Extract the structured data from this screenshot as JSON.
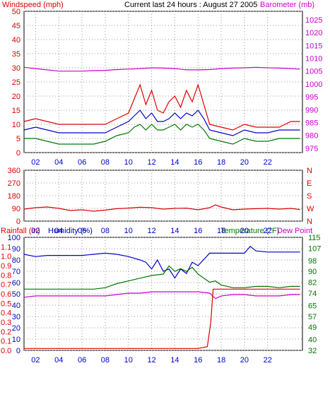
{
  "header": {
    "left_label": "Windspeed (mph)",
    "title": "Current last 24 hours : August 27 2005",
    "right_label": "Barometer (mb)"
  },
  "colors": {
    "red": "#dd0000",
    "blue": "#0000cc",
    "green": "#007700",
    "magenta": "#cc00cc",
    "frame": "#000000",
    "background": "#ffffff"
  },
  "chart_data": [
    {
      "type": "line",
      "name": "wind-barometer",
      "x_ticks": [
        "02",
        "04",
        "06",
        "08",
        "10",
        "12",
        "14",
        "16",
        "18",
        "20",
        "22"
      ],
      "y_left": {
        "label": "Windspeed (mph)",
        "ticks": [
          0,
          5,
          10,
          15,
          20,
          25,
          30,
          35,
          40,
          45,
          50
        ],
        "range": [
          0,
          50
        ]
      },
      "y_right": {
        "label": "Barometer (mb)",
        "ticks": [
          975,
          980,
          985,
          990,
          995,
          1000,
          1005,
          1010,
          1015,
          1020,
          1025
        ],
        "range": [
          973.3,
          1028.3
        ]
      },
      "x_range": [
        0,
        24
      ],
      "series": [
        {
          "color": "#dd0000",
          "x": [
            0,
            1,
            2,
            3,
            4,
            5,
            6,
            7,
            8,
            9,
            9.5,
            10,
            10.5,
            11,
            11.5,
            12,
            12.5,
            13,
            13.5,
            14,
            14.5,
            15,
            15.5,
            16,
            17,
            18,
            19,
            20,
            21,
            22,
            23,
            23.8
          ],
          "y": [
            11,
            12,
            11,
            10,
            10,
            10,
            10,
            10,
            12,
            14,
            19,
            24,
            17,
            22,
            15,
            14,
            18,
            20,
            16,
            22,
            18,
            24,
            17,
            10,
            9,
            8,
            10,
            9,
            9,
            9,
            11,
            11
          ]
        },
        {
          "color": "#0000cc",
          "x": [
            0,
            1,
            2,
            3,
            4,
            5,
            6,
            7,
            8,
            9,
            9.5,
            10,
            10.5,
            11,
            11.5,
            12,
            12.5,
            13,
            13.5,
            14,
            14.5,
            15,
            15.5,
            16,
            17,
            18,
            19,
            20,
            21,
            22,
            23,
            23.8
          ],
          "y": [
            8,
            9,
            8,
            7,
            7,
            7,
            7,
            7,
            9,
            11,
            13,
            15,
            12,
            14,
            11,
            11,
            12,
            14,
            12,
            14,
            13,
            15,
            12,
            8,
            7,
            6,
            8,
            7,
            7,
            8,
            8,
            8
          ]
        },
        {
          "color": "#007700",
          "x": [
            0,
            1,
            2,
            3,
            4,
            5,
            6,
            7,
            8,
            9,
            9.5,
            10,
            10.5,
            11,
            11.5,
            12,
            12.5,
            13,
            13.5,
            14,
            14.5,
            15,
            15.5,
            16,
            17,
            18,
            19,
            20,
            21,
            22,
            23,
            23.8
          ],
          "y": [
            5,
            5,
            4,
            3,
            3,
            3,
            3,
            4,
            6,
            7,
            9,
            10,
            8,
            10,
            8,
            8,
            9,
            10,
            8,
            10,
            9,
            10,
            8,
            5,
            4,
            3,
            5,
            4,
            4,
            5,
            5,
            5
          ]
        },
        {
          "color": "#cc00cc",
          "axis": "right",
          "x": [
            0,
            1,
            2,
            3,
            4,
            5,
            6,
            7,
            8,
            9,
            10,
            11,
            12,
            13,
            14,
            15,
            16,
            17,
            18,
            19,
            20,
            21,
            22,
            23,
            23.8
          ],
          "y": [
            1006.5,
            1006,
            1005.5,
            1005,
            1005,
            1005,
            1005.2,
            1005.3,
            1005.6,
            1005.8,
            1006,
            1006.3,
            1006.2,
            1006,
            1005.5,
            1005.5,
            1005.6,
            1006,
            1006.2,
            1006.3,
            1006.5,
            1006.3,
            1006.2,
            1006,
            1005.8
          ]
        }
      ]
    },
    {
      "type": "line",
      "name": "wind-direction",
      "x_ticks": [
        "02",
        "04",
        "06",
        "08",
        "10",
        "12",
        "14",
        "16",
        "18",
        "20",
        "22"
      ],
      "y_left": {
        "ticks": [
          0,
          90,
          180,
          270,
          360
        ],
        "range": [
          0,
          360
        ]
      },
      "y_right": {
        "ticks": [
          "N",
          "W",
          "S",
          "E",
          "N"
        ]
      },
      "x_range": [
        0,
        24
      ],
      "series": [
        {
          "color": "#dd0000",
          "x": [
            0,
            1,
            2,
            3,
            4,
            5,
            6,
            7,
            8,
            9,
            10,
            11,
            12,
            13,
            14,
            15,
            16,
            16.5,
            17,
            18,
            19,
            20,
            21,
            22,
            23,
            23.8
          ],
          "y": [
            85,
            95,
            100,
            90,
            75,
            80,
            70,
            78,
            88,
            92,
            98,
            95,
            85,
            90,
            92,
            80,
            95,
            115,
            100,
            80,
            85,
            88,
            90,
            85,
            90,
            82
          ]
        }
      ]
    },
    {
      "type": "line",
      "name": "rain-humidity-temperature",
      "labels": {
        "rainfall": "Rainfall (in)",
        "humidity": "Humidity (%)",
        "temperature": "Temperature (°F)",
        "dewpoint": "Dew Point"
      },
      "x_ticks": [
        "02",
        "04",
        "06",
        "08",
        "10",
        "12",
        "14",
        "16",
        "18",
        "20",
        "22"
      ],
      "y_humidity": {
        "ticks": [
          0,
          10,
          20,
          30,
          40,
          50,
          60,
          70,
          80,
          90,
          100
        ],
        "range": [
          0,
          100
        ]
      },
      "y_rainfall": {
        "ticks": [
          "0.0",
          "0.1",
          "0.2",
          "0.3",
          "0.4",
          "0.5",
          "0.6",
          "0.7",
          "0.8",
          "0.9",
          "1.0",
          "1.1"
        ],
        "range": [
          0,
          1.2
        ]
      },
      "y_temperature": {
        "ticks": [
          32,
          40,
          49,
          57,
          65,
          74,
          82,
          90,
          98,
          107,
          115
        ],
        "range": [
          32,
          115
        ]
      },
      "x_range": [
        0,
        24
      ],
      "series": [
        {
          "color": "#0000cc",
          "axis": "humidity",
          "x": [
            0,
            1,
            2,
            3,
            4,
            5,
            6,
            7,
            8,
            9,
            10,
            10.5,
            11,
            11.5,
            12,
            12.5,
            13,
            13.5,
            14,
            14.5,
            15,
            16,
            17,
            18,
            19,
            19.5,
            20,
            21,
            22,
            23,
            23.8
          ],
          "y": [
            85,
            83,
            84,
            84,
            84,
            84,
            85,
            86,
            85,
            83,
            80,
            78,
            72,
            80,
            70,
            72,
            64,
            72,
            68,
            78,
            75,
            86,
            86,
            86,
            86,
            92,
            88,
            87,
            87,
            87,
            87
          ]
        },
        {
          "color": "#007700",
          "axis": "temperature",
          "x": [
            0,
            1,
            2,
            3,
            4,
            5,
            6,
            7,
            8,
            9,
            10,
            11,
            12,
            12.5,
            13,
            13.5,
            14,
            14.5,
            15,
            16,
            16.5,
            17,
            18,
            19,
            20,
            21,
            22,
            23,
            23.8
          ],
          "y": [
            77,
            77,
            77,
            77,
            77,
            77,
            77,
            78,
            81,
            83,
            85,
            87,
            88,
            94,
            90,
            92,
            90,
            93,
            88,
            82,
            83,
            80,
            78,
            78,
            79,
            79,
            78,
            79,
            79
          ]
        },
        {
          "color": "#cc00cc",
          "axis": "temperature",
          "x": [
            0,
            1,
            2,
            3,
            4,
            5,
            6,
            7,
            8,
            9,
            10,
            11,
            12,
            13,
            14,
            15,
            16,
            16.5,
            17,
            18,
            19,
            20,
            21,
            22,
            23,
            23.8
          ],
          "y": [
            71,
            72,
            72,
            72,
            72,
            72,
            72,
            72,
            73,
            74,
            74,
            75,
            75,
            75,
            75,
            75,
            74,
            70,
            72,
            73,
            73,
            72,
            72,
            72,
            73,
            73
          ]
        },
        {
          "color": "#dd0000",
          "axis": "rainfall",
          "x": [
            0,
            1,
            2,
            3,
            4,
            5,
            6,
            7,
            8,
            9,
            10,
            11,
            12,
            13,
            14,
            15,
            15.8,
            16.1,
            16.3,
            17,
            18,
            19,
            20,
            21,
            22,
            23,
            23.8
          ],
          "y": [
            0.02,
            0.02,
            0.02,
            0.02,
            0.02,
            0.02,
            0.02,
            0.02,
            0.02,
            0.02,
            0.02,
            0.02,
            0.02,
            0.02,
            0.02,
            0.02,
            0.04,
            0.3,
            0.65,
            0.65,
            0.65,
            0.65,
            0.65,
            0.65,
            0.65,
            0.65,
            0.65
          ]
        }
      ]
    }
  ]
}
